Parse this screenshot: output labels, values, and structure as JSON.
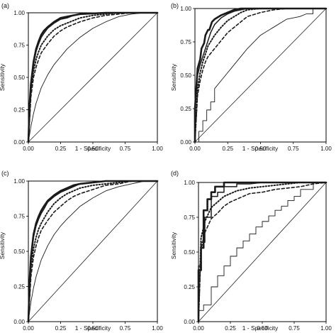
{
  "chart_data": [
    {
      "type": "line",
      "panel_label": "(a)",
      "xlabel": "1 - Specificity",
      "ylabel": "Sensitivity",
      "xlim": [
        0,
        1
      ],
      "ylim": [
        0,
        1
      ],
      "x_ticks": [
        "0.00",
        "0.25",
        "0.50",
        "0.75",
        "1.00"
      ],
      "y_ticks": [
        "0.00",
        "0.25",
        "0.50",
        "0.75",
        "1.00"
      ],
      "series": [
        {
          "style": "thick-solid",
          "x": [
            0,
            0.01,
            0.02,
            0.04,
            0.06,
            0.08,
            0.1,
            0.12,
            0.15,
            0.2,
            0.25,
            0.3,
            0.35,
            0.4,
            0.5,
            0.6,
            0.7,
            1.0
          ],
          "y": [
            0,
            0.3,
            0.45,
            0.62,
            0.72,
            0.78,
            0.83,
            0.86,
            0.89,
            0.93,
            0.96,
            0.97,
            0.98,
            0.99,
            0.995,
            1,
            1,
            1
          ]
        },
        {
          "style": "solid",
          "x": [
            0,
            0.01,
            0.02,
            0.04,
            0.06,
            0.08,
            0.1,
            0.12,
            0.15,
            0.2,
            0.25,
            0.3,
            0.35,
            0.4,
            0.5,
            0.6,
            0.7,
            1.0
          ],
          "y": [
            0,
            0.28,
            0.42,
            0.6,
            0.7,
            0.76,
            0.81,
            0.84,
            0.88,
            0.92,
            0.95,
            0.96,
            0.98,
            0.99,
            0.995,
            1,
            1,
            1
          ]
        },
        {
          "style": "dotted",
          "x": [
            0,
            0.02,
            0.04,
            0.06,
            0.08,
            0.1,
            0.15,
            0.2,
            0.25,
            0.3,
            0.35,
            0.4,
            0.5,
            0.6,
            0.7,
            0.8,
            1.0
          ],
          "y": [
            0,
            0.4,
            0.55,
            0.64,
            0.7,
            0.75,
            0.82,
            0.87,
            0.9,
            0.92,
            0.94,
            0.96,
            0.98,
            0.99,
            1,
            1,
            1
          ]
        },
        {
          "style": "dashed",
          "x": [
            0,
            0.02,
            0.04,
            0.06,
            0.08,
            0.1,
            0.15,
            0.2,
            0.25,
            0.3,
            0.35,
            0.4,
            0.5,
            0.6,
            0.7,
            0.8,
            1.0
          ],
          "y": [
            0,
            0.35,
            0.5,
            0.58,
            0.64,
            0.69,
            0.76,
            0.82,
            0.86,
            0.89,
            0.91,
            0.93,
            0.96,
            0.98,
            0.99,
            1,
            1
          ]
        },
        {
          "style": "thin-solid",
          "x": [
            0,
            0.02,
            0.04,
            0.06,
            0.08,
            0.1,
            0.15,
            0.2,
            0.25,
            0.3,
            0.4,
            0.5,
            0.6,
            0.7,
            0.8,
            0.9,
            1.0
          ],
          "y": [
            0,
            0.12,
            0.22,
            0.3,
            0.36,
            0.42,
            0.52,
            0.6,
            0.66,
            0.72,
            0.81,
            0.88,
            0.93,
            0.97,
            0.99,
            1,
            1
          ]
        }
      ]
    },
    {
      "type": "line",
      "panel_label": "(b)",
      "xlabel": "1 - Specificity",
      "ylabel": "Sensitivity",
      "xlim": [
        0,
        1
      ],
      "ylim": [
        0,
        1
      ],
      "x_ticks": [
        "0.00",
        "0.25",
        "0.50",
        "0.75",
        "1.00"
      ],
      "y_ticks": [
        "0.00",
        "0.25",
        "0.50",
        "0.75",
        "1.00"
      ],
      "series": [
        {
          "style": "thick-solid",
          "x": [
            0,
            0,
            0.01,
            0.02,
            0.04,
            0.05,
            0.07,
            0.08,
            0.1,
            0.11,
            0.13,
            0.15,
            0.2,
            0.25,
            0.3,
            0.35,
            0.4,
            0.5,
            1.0
          ],
          "y": [
            0,
            0.25,
            0.4,
            0.55,
            0.62,
            0.7,
            0.74,
            0.8,
            0.84,
            0.84,
            0.9,
            0.92,
            0.95,
            0.97,
            0.99,
            1,
            1,
            1,
            1
          ]
        },
        {
          "style": "solid",
          "x": [
            0,
            0,
            0.01,
            0.02,
            0.04,
            0.06,
            0.08,
            0.1,
            0.12,
            0.15,
            0.2,
            0.25,
            0.3,
            0.35,
            0.4,
            0.5,
            1.0
          ],
          "y": [
            0,
            0.22,
            0.38,
            0.5,
            0.58,
            0.64,
            0.7,
            0.76,
            0.82,
            0.88,
            0.93,
            0.96,
            0.98,
            0.99,
            1,
            1,
            1
          ]
        },
        {
          "style": "dotted",
          "x": [
            0,
            0.02,
            0.04,
            0.06,
            0.08,
            0.1,
            0.15,
            0.2,
            0.25,
            0.3,
            0.35,
            0.4,
            0.5,
            0.6,
            0.7,
            1.0
          ],
          "y": [
            0,
            0.4,
            0.52,
            0.6,
            0.66,
            0.72,
            0.8,
            0.86,
            0.91,
            0.94,
            0.97,
            0.99,
            1,
            1,
            1,
            1
          ]
        },
        {
          "style": "dashed",
          "x": [
            0,
            0.02,
            0.04,
            0.06,
            0.08,
            0.1,
            0.15,
            0.2,
            0.25,
            0.3,
            0.35,
            0.4,
            0.5,
            0.6,
            0.7,
            1.0
          ],
          "y": [
            0,
            0.35,
            0.46,
            0.54,
            0.6,
            0.64,
            0.7,
            0.76,
            0.82,
            0.86,
            0.9,
            0.94,
            0.97,
            0.99,
            1,
            1
          ]
        },
        {
          "style": "thin-solid",
          "x": [
            0,
            0.03,
            0.03,
            0.06,
            0.06,
            0.09,
            0.09,
            0.12,
            0.12,
            0.15,
            0.15,
            0.2,
            0.25,
            0.3,
            0.35,
            0.4,
            0.5,
            0.6,
            0.7,
            0.8,
            0.85,
            0.9,
            0.9,
            1.0
          ],
          "y": [
            0,
            0,
            0.08,
            0.08,
            0.16,
            0.16,
            0.24,
            0.24,
            0.3,
            0.3,
            0.4,
            0.46,
            0.52,
            0.58,
            0.64,
            0.7,
            0.8,
            0.86,
            0.92,
            0.94,
            0.96,
            0.96,
            1,
            1
          ]
        }
      ]
    },
    {
      "type": "line",
      "panel_label": "(c)",
      "xlabel": "1 - Specificity",
      "ylabel": "Sensitivity",
      "xlim": [
        0,
        1
      ],
      "ylim": [
        0,
        1
      ],
      "x_ticks": [
        "0.00",
        "0.25",
        "0.50",
        "0.75",
        "1.00"
      ],
      "y_ticks": [
        "0.00",
        "0.25",
        "0.50",
        "0.75",
        "1.00"
      ],
      "series": [
        {
          "style": "thick-solid",
          "x": [
            0,
            0.01,
            0.02,
            0.04,
            0.06,
            0.08,
            0.1,
            0.12,
            0.15,
            0.2,
            0.25,
            0.3,
            0.35,
            0.4,
            0.5,
            0.6,
            0.7,
            1.0
          ],
          "y": [
            0,
            0.3,
            0.46,
            0.62,
            0.7,
            0.75,
            0.79,
            0.82,
            0.86,
            0.9,
            0.93,
            0.95,
            0.97,
            0.98,
            0.99,
            1,
            1,
            1
          ]
        },
        {
          "style": "solid",
          "x": [
            0,
            0.01,
            0.02,
            0.04,
            0.06,
            0.08,
            0.1,
            0.12,
            0.15,
            0.2,
            0.25,
            0.3,
            0.35,
            0.4,
            0.5,
            0.6,
            0.7,
            1.0
          ],
          "y": [
            0,
            0.28,
            0.44,
            0.6,
            0.68,
            0.73,
            0.77,
            0.8,
            0.85,
            0.89,
            0.92,
            0.94,
            0.96,
            0.98,
            0.99,
            1,
            1,
            1
          ]
        },
        {
          "style": "dotted",
          "x": [
            0,
            0.02,
            0.04,
            0.06,
            0.08,
            0.1,
            0.15,
            0.2,
            0.25,
            0.3,
            0.35,
            0.4,
            0.5,
            0.6,
            0.7,
            0.8,
            1.0
          ],
          "y": [
            0,
            0.38,
            0.52,
            0.6,
            0.66,
            0.7,
            0.78,
            0.84,
            0.88,
            0.91,
            0.93,
            0.95,
            0.97,
            0.98,
            0.99,
            1,
            1
          ]
        },
        {
          "style": "dashed",
          "x": [
            0,
            0.02,
            0.04,
            0.06,
            0.08,
            0.1,
            0.15,
            0.2,
            0.25,
            0.3,
            0.35,
            0.4,
            0.5,
            0.6,
            0.7,
            0.8,
            1.0
          ],
          "y": [
            0,
            0.32,
            0.46,
            0.54,
            0.6,
            0.65,
            0.72,
            0.78,
            0.82,
            0.86,
            0.89,
            0.91,
            0.94,
            0.97,
            0.98,
            1,
            1
          ]
        },
        {
          "style": "thin-solid",
          "x": [
            0,
            0.02,
            0.04,
            0.06,
            0.08,
            0.1,
            0.15,
            0.2,
            0.25,
            0.3,
            0.4,
            0.5,
            0.6,
            0.7,
            0.8,
            0.9,
            1.0
          ],
          "y": [
            0,
            0.14,
            0.24,
            0.32,
            0.38,
            0.44,
            0.54,
            0.62,
            0.68,
            0.73,
            0.82,
            0.88,
            0.93,
            0.96,
            0.98,
            1,
            1
          ]
        }
      ]
    },
    {
      "type": "line",
      "panel_label": "(d)",
      "xlabel": "1 - Specificity",
      "ylabel": "Sensitivity",
      "xlim": [
        0,
        1
      ],
      "ylim": [
        0,
        1
      ],
      "x_ticks": [
        "0.00",
        "0.25",
        "0.50",
        "0.75",
        "1.00"
      ],
      "y_ticks": [
        "0.00",
        "0.25",
        "0.50",
        "0.75",
        "1.00"
      ],
      "series": [
        {
          "style": "thick-solid",
          "x": [
            0,
            0,
            0.02,
            0.02,
            0.04,
            0.04,
            0.07,
            0.07,
            0.1,
            0.1,
            0.13,
            0.13,
            0.2,
            0.2,
            0.3,
            0.4,
            0.5,
            0.6,
            0.7,
            1.0
          ],
          "y": [
            0,
            0.37,
            0.37,
            0.53,
            0.53,
            0.8,
            0.8,
            0.88,
            0.88,
            0.93,
            0.93,
            0.97,
            0.97,
            1,
            1,
            1,
            1,
            1,
            1,
            1
          ]
        },
        {
          "style": "solid",
          "x": [
            0,
            0,
            0.02,
            0.02,
            0.05,
            0.05,
            0.1,
            0.1,
            0.15,
            0.15,
            0.2,
            0.2,
            0.3,
            0.3,
            0.4,
            0.5,
            0.6,
            0.7,
            1.0
          ],
          "y": [
            0,
            0.4,
            0.4,
            0.57,
            0.57,
            0.75,
            0.75,
            0.9,
            0.9,
            0.93,
            0.93,
            0.97,
            0.97,
            0.99,
            0.99,
            1,
            1,
            1,
            1
          ]
        },
        {
          "style": "dotted",
          "x": [
            0,
            0.02,
            0.05,
            0.08,
            0.1,
            0.15,
            0.2,
            0.25,
            0.3,
            0.35,
            0.4,
            0.5,
            0.6,
            0.7,
            0.8,
            1.0
          ],
          "y": [
            0,
            0.6,
            0.72,
            0.78,
            0.82,
            0.86,
            0.9,
            0.92,
            0.94,
            0.95,
            0.96,
            0.97,
            0.98,
            0.99,
            1,
            1
          ]
        },
        {
          "style": "dashed",
          "x": [
            0,
            0.02,
            0.05,
            0.08,
            0.1,
            0.15,
            0.2,
            0.25,
            0.3,
            0.35,
            0.4,
            0.5,
            0.6,
            0.7,
            0.8,
            0.9,
            1.0
          ],
          "y": [
            0,
            0.52,
            0.64,
            0.7,
            0.74,
            0.78,
            0.83,
            0.86,
            0.88,
            0.9,
            0.92,
            0.93,
            0.95,
            0.96,
            0.97,
            0.99,
            1
          ]
        },
        {
          "style": "thin-solid",
          "x": [
            0,
            0,
            0.04,
            0.04,
            0.1,
            0.1,
            0.15,
            0.15,
            0.2,
            0.2,
            0.25,
            0.25,
            0.3,
            0.3,
            0.35,
            0.35,
            0.4,
            0.4,
            0.45,
            0.45,
            0.5,
            0.5,
            0.55,
            0.55,
            0.6,
            0.6,
            0.65,
            0.65,
            0.7,
            0.7,
            0.75,
            0.75,
            0.8,
            0.8,
            0.9,
            0.9,
            1.0
          ],
          "y": [
            0,
            0.08,
            0.08,
            0.12,
            0.12,
            0.25,
            0.25,
            0.33,
            0.33,
            0.4,
            0.4,
            0.47,
            0.47,
            0.53,
            0.53,
            0.58,
            0.58,
            0.63,
            0.63,
            0.68,
            0.68,
            0.72,
            0.72,
            0.76,
            0.76,
            0.8,
            0.8,
            0.83,
            0.83,
            0.87,
            0.87,
            0.9,
            0.9,
            0.95,
            0.95,
            1,
            1
          ]
        }
      ]
    }
  ]
}
